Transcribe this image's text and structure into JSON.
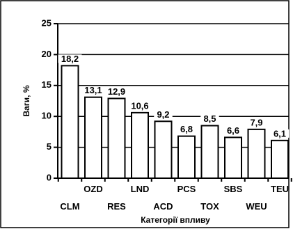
{
  "chart_data": {
    "type": "bar",
    "categories": [
      "CLM",
      "OZD",
      "RES",
      "LND",
      "ACD",
      "PCS",
      "TOX",
      "SBS",
      "WEU",
      "TEU"
    ],
    "values": [
      18.2,
      13.1,
      12.9,
      10.6,
      9.2,
      6.8,
      8.5,
      6.6,
      7.9,
      6.1
    ],
    "data_labels": [
      "18,2",
      "13,1",
      "12,9",
      "10,6",
      "9,2",
      "6,8",
      "8,5",
      "6,6",
      "7,9",
      "6,1"
    ],
    "xlabel": "Категорії впливу",
    "ylabel": "Ваги, %",
    "ylim": [
      0,
      25
    ],
    "yticks": [
      0,
      5,
      10,
      15,
      20,
      25
    ],
    "grid": true,
    "legend": "none"
  }
}
